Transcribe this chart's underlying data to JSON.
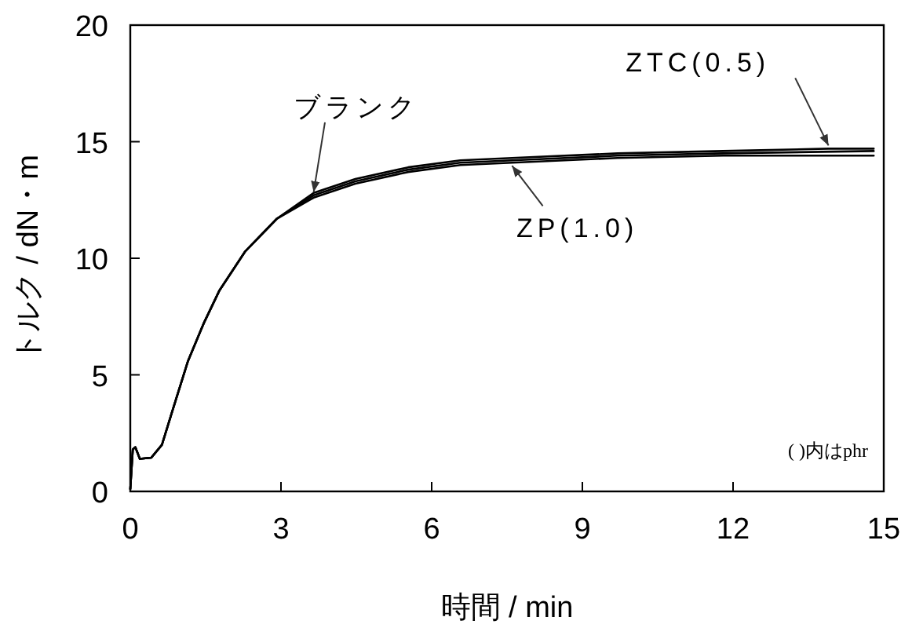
{
  "chart_data": {
    "type": "line",
    "xlabel": "時間 / min",
    "ylabel": "トルク / dN・m",
    "xlim": [
      0,
      15
    ],
    "xticks": [
      0,
      3,
      6,
      9,
      12,
      15
    ],
    "ylim": [
      0,
      20
    ],
    "yticks": [
      0,
      5,
      10,
      15,
      20
    ],
    "grid": false,
    "marker": "none",
    "line_style": "solid",
    "series": [
      {
        "name": "ZTC(0.5)",
        "color": "#000000",
        "x": [
          0,
          0.05,
          0.1,
          0.19,
          0.42,
          0.63,
          0.83,
          1.15,
          1.46,
          1.77,
          2.29,
          2.92,
          3.65,
          4.48,
          5.53,
          6.57,
          7.6,
          9.7,
          11.8,
          13.9,
          14.8
        ],
        "values": [
          0.1,
          1.8,
          1.9,
          1.4,
          1.45,
          2.0,
          3.4,
          5.6,
          7.2,
          8.6,
          10.3,
          11.7,
          12.8,
          13.4,
          13.9,
          14.2,
          14.3,
          14.5,
          14.6,
          14.7,
          14.7
        ]
      },
      {
        "name": "ブランク",
        "color": "#000000",
        "x": [
          0,
          0.05,
          0.1,
          0.19,
          0.42,
          0.63,
          0.83,
          1.15,
          1.46,
          1.77,
          2.29,
          2.92,
          3.65,
          4.48,
          5.53,
          6.57,
          7.6,
          9.7,
          11.8,
          14.8
        ],
        "values": [
          0.1,
          1.8,
          1.9,
          1.4,
          1.45,
          2.0,
          3.4,
          5.6,
          7.2,
          8.6,
          10.3,
          11.7,
          12.7,
          13.3,
          13.8,
          14.1,
          14.2,
          14.4,
          14.5,
          14.6
        ]
      },
      {
        "name": "ZP(1.0)",
        "color": "#000000",
        "x": [
          0,
          0.05,
          0.1,
          0.19,
          0.42,
          0.63,
          0.83,
          1.15,
          1.46,
          1.77,
          2.29,
          2.92,
          3.65,
          4.48,
          5.53,
          6.57,
          7.6,
          9.7,
          11.8,
          14.8
        ],
        "values": [
          0.1,
          1.8,
          1.9,
          1.4,
          1.45,
          2.0,
          3.4,
          5.6,
          7.2,
          8.6,
          10.3,
          11.7,
          12.6,
          13.2,
          13.7,
          14.0,
          14.1,
          14.3,
          14.4,
          14.4
        ]
      }
    ],
    "annotations": [
      "( )内はphr"
    ]
  }
}
